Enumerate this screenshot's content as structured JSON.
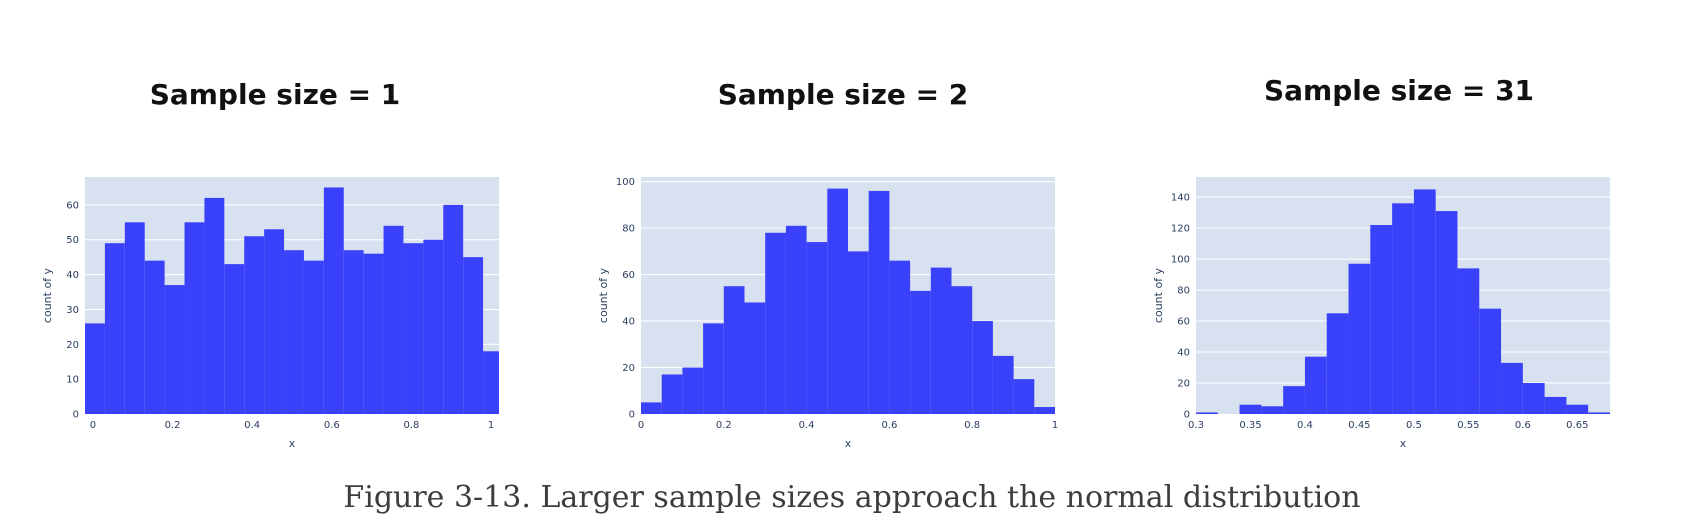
{
  "caption": "Figure 3-13. Larger sample sizes approach the normal distribution",
  "colors": {
    "plot_bg": "#d8e1f0",
    "grid": "#ffffff",
    "bar": "#3a41fb",
    "text": "#2a3f5f"
  },
  "chart_data": [
    {
      "type": "bar",
      "title": "Sample size = 1",
      "xlabel": "x",
      "ylabel": "count of y",
      "xlim": [
        -0.02,
        1.02
      ],
      "ylim": [
        0,
        68
      ],
      "xticks": [
        0,
        0.2,
        0.4,
        0.6,
        0.8,
        1
      ],
      "xtick_labels": [
        "0",
        "0.2",
        "0.4",
        "0.6",
        "0.8",
        "1"
      ],
      "yticks": [
        0,
        10,
        20,
        30,
        40,
        50,
        60
      ],
      "grid": true,
      "bin_edges": [
        -0.02,
        0.03,
        0.08,
        0.13,
        0.18,
        0.23,
        0.28,
        0.33,
        0.38,
        0.43,
        0.48,
        0.53,
        0.58,
        0.63,
        0.68,
        0.73,
        0.78,
        0.83,
        0.88,
        0.93,
        0.98,
        1.02
      ],
      "values": [
        26,
        49,
        55,
        44,
        37,
        55,
        62,
        43,
        51,
        53,
        47,
        44,
        65,
        47,
        46,
        54,
        49,
        50,
        60,
        45,
        18
      ]
    },
    {
      "type": "bar",
      "title": "Sample size = 2",
      "xlabel": "x",
      "ylabel": "count of y",
      "xlim": [
        0,
        1
      ],
      "ylim": [
        0,
        102
      ],
      "xticks": [
        0,
        0.2,
        0.4,
        0.6,
        0.8,
        1
      ],
      "xtick_labels": [
        "0",
        "0.2",
        "0.4",
        "0.6",
        "0.8",
        "1"
      ],
      "yticks": [
        0,
        20,
        40,
        60,
        80,
        100
      ],
      "grid": true,
      "bin_edges": [
        0,
        0.05,
        0.1,
        0.15,
        0.2,
        0.25,
        0.3,
        0.35,
        0.4,
        0.45,
        0.5,
        0.55,
        0.6,
        0.65,
        0.7,
        0.75,
        0.8,
        0.85,
        0.9,
        0.95,
        1
      ],
      "values": [
        5,
        17,
        20,
        39,
        55,
        48,
        78,
        81,
        74,
        97,
        70,
        96,
        66,
        53,
        63,
        55,
        40,
        25,
        15,
        3
      ]
    },
    {
      "type": "bar",
      "title": "Sample size = 31",
      "xlabel": "x",
      "ylabel": "count of y",
      "xlim": [
        0.3,
        0.68
      ],
      "ylim": [
        0,
        153
      ],
      "xticks": [
        0.3,
        0.35,
        0.4,
        0.45,
        0.5,
        0.55,
        0.6,
        0.65
      ],
      "xtick_labels": [
        "0.3",
        "0.35",
        "0.4",
        "0.45",
        "0.5",
        "0.55",
        "0.6",
        "0.65"
      ],
      "yticks": [
        0,
        20,
        40,
        60,
        80,
        100,
        120,
        140
      ],
      "grid": true,
      "bin_edges": [
        0.3,
        0.32,
        0.34,
        0.36,
        0.38,
        0.4,
        0.42,
        0.44,
        0.46,
        0.48,
        0.5,
        0.52,
        0.54,
        0.56,
        0.58,
        0.6,
        0.62,
        0.64,
        0.66,
        0.68
      ],
      "values": [
        1,
        0,
        6,
        5,
        18,
        37,
        65,
        97,
        122,
        136,
        145,
        131,
        94,
        68,
        33,
        20,
        11,
        6,
        1
      ]
    }
  ]
}
